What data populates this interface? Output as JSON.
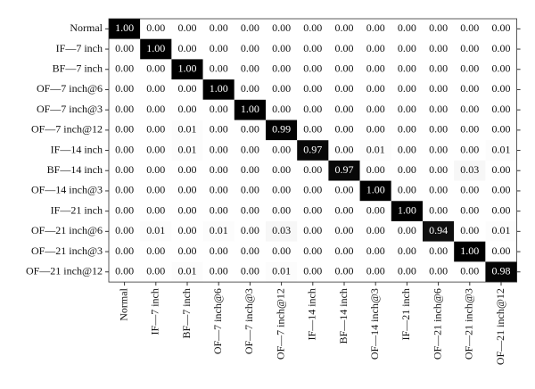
{
  "chart_data": {
    "type": "heatmap",
    "categories": [
      "Normal",
      "IF—7 inch",
      "BF—7 inch",
      "OF—7 inch@6",
      "OF—7 inch@3",
      "OF—7 inch@12",
      "IF—14 inch",
      "BF—14 inch",
      "OF—14 inch@3",
      "IF—21 inch",
      "OF—21 inch@6",
      "OF—21 inch@3",
      "OF—21 inch@12"
    ],
    "values": [
      [
        1,
        0,
        0,
        0,
        0,
        0,
        0,
        0,
        0,
        0,
        0,
        0,
        0
      ],
      [
        0,
        1,
        0,
        0,
        0,
        0,
        0,
        0,
        0,
        0,
        0,
        0,
        0
      ],
      [
        0,
        0,
        1,
        0,
        0,
        0,
        0,
        0,
        0,
        0,
        0,
        0,
        0
      ],
      [
        0,
        0,
        0,
        1,
        0,
        0,
        0,
        0,
        0,
        0,
        0,
        0,
        0
      ],
      [
        0,
        0,
        0,
        0,
        1,
        0,
        0,
        0,
        0,
        0,
        0,
        0,
        0
      ],
      [
        0,
        0,
        0.01,
        0,
        0,
        0.99,
        0,
        0,
        0,
        0,
        0,
        0,
        0
      ],
      [
        0,
        0,
        0.01,
        0,
        0,
        0,
        0.97,
        0,
        0.01,
        0,
        0,
        0,
        0.01
      ],
      [
        0,
        0,
        0,
        0,
        0,
        0,
        0,
        0.97,
        0,
        0,
        0,
        0.03,
        0
      ],
      [
        0,
        0,
        0,
        0,
        0,
        0,
        0,
        0,
        1,
        0,
        0,
        0,
        0
      ],
      [
        0,
        0,
        0,
        0,
        0,
        0,
        0,
        0,
        0,
        1,
        0,
        0,
        0
      ],
      [
        0,
        0.01,
        0,
        0.01,
        0,
        0.03,
        0,
        0,
        0,
        0,
        0.94,
        0,
        0.01
      ],
      [
        0,
        0,
        0,
        0,
        0,
        0,
        0,
        0,
        0,
        0,
        0,
        1,
        0
      ],
      [
        0,
        0,
        0.01,
        0,
        0,
        0.01,
        0,
        0,
        0,
        0,
        0,
        0,
        0.98
      ]
    ],
    "value_labels": [
      [
        "1.00",
        "0.00",
        "0.00",
        "0.00",
        "0.00",
        "0.00",
        "0.00",
        "0.00",
        "0.00",
        "0.00",
        "0.00",
        "0.00",
        "0.00"
      ],
      [
        "0.00",
        "1.00",
        "0.00",
        "0.00",
        "0.00",
        "0.00",
        "0.00",
        "0.00",
        "0.00",
        "0.00",
        "0.00",
        "0.00",
        "0.00"
      ],
      [
        "0.00",
        "0.00",
        "1.00",
        "0.00",
        "0.00",
        "0.00",
        "0.00",
        "0.00",
        "0.00",
        "0.00",
        "0.00",
        "0.00",
        "0.00"
      ],
      [
        "0.00",
        "0.00",
        "0.00",
        "1.00",
        "0.00",
        "0.00",
        "0.00",
        "0.00",
        "0.00",
        "0.00",
        "0.00",
        "0.00",
        "0.00"
      ],
      [
        "0.00",
        "0.00",
        "0.00",
        "0.00",
        "1.00",
        "0.00",
        "0.00",
        "0.00",
        "0.00",
        "0.00",
        "0.00",
        "0.00",
        "0.00"
      ],
      [
        "0.00",
        "0.00",
        "0.01",
        "0.00",
        "0.00",
        "0.99",
        "0.00",
        "0.00",
        "0.00",
        "0.00",
        "0.00",
        "0.00",
        "0.00"
      ],
      [
        "0.00",
        "0.00",
        "0.01",
        "0.00",
        "0.00",
        "0.00",
        "0.97",
        "0.00",
        "0.01",
        "0.00",
        "0.00",
        "0.00",
        "0.01"
      ],
      [
        "0.00",
        "0.00",
        "0.00",
        "0.00",
        "0.00",
        "0.00",
        "0.00",
        "0.97",
        "0.00",
        "0.00",
        "0.00",
        "0.03",
        "0.00"
      ],
      [
        "0.00",
        "0.00",
        "0.00",
        "0.00",
        "0.00",
        "0.00",
        "0.00",
        "0.00",
        "1.00",
        "0.00",
        "0.00",
        "0.00",
        "0.00"
      ],
      [
        "0.00",
        "0.00",
        "0.00",
        "0.00",
        "0.00",
        "0.00",
        "0.00",
        "0.00",
        "0.00",
        "1.00",
        "0.00",
        "0.00",
        "0.00"
      ],
      [
        "0.00",
        "0.01",
        "0.00",
        "0.01",
        "0.00",
        "0.03",
        "0.00",
        "0.00",
        "0.00",
        "0.00",
        "0.94",
        "0.00",
        "0.01"
      ],
      [
        "0.00",
        "0.00",
        "0.00",
        "0.00",
        "0.00",
        "0.00",
        "0.00",
        "0.00",
        "0.00",
        "0.00",
        "0.00",
        "1.00",
        "0.00"
      ],
      [
        "0.00",
        "0.00",
        "0.01",
        "0.00",
        "0.00",
        "0.01",
        "0.00",
        "0.00",
        "0.00",
        "0.00",
        "0.00",
        "0.00",
        "0.98"
      ]
    ],
    "colormap": [
      "#ffffff",
      "#000000"
    ]
  }
}
